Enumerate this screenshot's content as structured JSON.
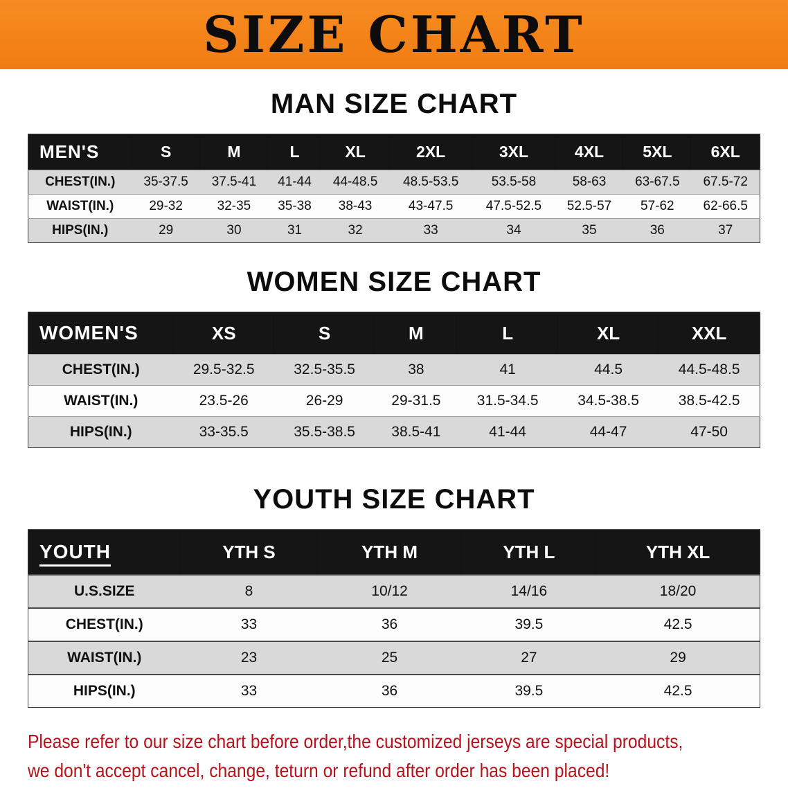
{
  "banner": {
    "title": "SIZE CHART"
  },
  "colors": {
    "banner_bg": "#f5821f",
    "table_header_bg": "#151515",
    "row_shaded_bg": "#d9d9d9",
    "footer_text": "#b5121b"
  },
  "chart_data": [
    {
      "type": "table",
      "title": "MAN SIZE CHART",
      "corner_label": "MEN'S",
      "columns": [
        "S",
        "M",
        "L",
        "XL",
        "2XL",
        "3XL",
        "4XL",
        "5XL",
        "6XL"
      ],
      "rows": [
        {
          "label": "CHEST(IN.)",
          "values": [
            "35-37.5",
            "37.5-41",
            "41-44",
            "44-48.5",
            "48.5-53.5",
            "53.5-58",
            "58-63",
            "63-67.5",
            "67.5-72"
          ]
        },
        {
          "label": "WAIST(IN.)",
          "values": [
            "29-32",
            "32-35",
            "35-38",
            "38-43",
            "43-47.5",
            "47.5-52.5",
            "52.5-57",
            "57-62",
            "62-66.5"
          ]
        },
        {
          "label": "HIPS(IN.)",
          "values": [
            "29",
            "30",
            "31",
            "32",
            "33",
            "34",
            "35",
            "36",
            "37"
          ]
        }
      ]
    },
    {
      "type": "table",
      "title": "WOMEN SIZE CHART",
      "corner_label": "WOMEN'S",
      "columns": [
        "XS",
        "S",
        "M",
        "L",
        "XL",
        "XXL"
      ],
      "rows": [
        {
          "label": "CHEST(IN.)",
          "values": [
            "29.5-32.5",
            "32.5-35.5",
            "38",
            "41",
            "44.5",
            "44.5-48.5"
          ]
        },
        {
          "label": "WAIST(IN.)",
          "values": [
            "23.5-26",
            "26-29",
            "29-31.5",
            "31.5-34.5",
            "34.5-38.5",
            "38.5-42.5"
          ]
        },
        {
          "label": "HIPS(IN.)",
          "values": [
            "33-35.5",
            "35.5-38.5",
            "38.5-41",
            "41-44",
            "44-47",
            "47-50"
          ]
        }
      ]
    },
    {
      "type": "table",
      "title": "YOUTH SIZE CHART",
      "corner_label": "YOUTH",
      "columns": [
        "YTH S",
        "YTH M",
        "YTH L",
        "YTH XL"
      ],
      "rows": [
        {
          "label": "U.S.SIZE",
          "values": [
            "8",
            "10/12",
            "14/16",
            "18/20"
          ]
        },
        {
          "label": "CHEST(IN.)",
          "values": [
            "33",
            "36",
            "39.5",
            "42.5"
          ]
        },
        {
          "label": "WAIST(IN.)",
          "values": [
            "23",
            "25",
            "27",
            "29"
          ]
        },
        {
          "label": "HIPS(IN.)",
          "values": [
            "33",
            "36",
            "39.5",
            "42.5"
          ]
        }
      ]
    }
  ],
  "footer": {
    "line1": "Please refer to our size chart before order,the customized jerseys are special products,",
    "line2": "we don't accept cancel, change, teturn or refund after order has been placed!"
  }
}
